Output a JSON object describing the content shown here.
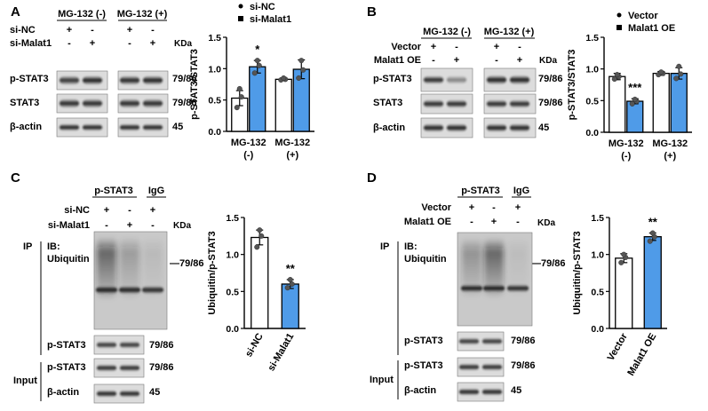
{
  "panels": {
    "A": {
      "letter": "A",
      "groups": [
        "MG-132 (-)",
        "MG-132 (+)"
      ],
      "rows": [
        {
          "label": "si-NC",
          "signs": [
            "+",
            "-",
            "+",
            "-"
          ]
        },
        {
          "label": "si-Malat1",
          "signs": [
            "-",
            "+",
            "-",
            "+"
          ]
        }
      ],
      "kda": "KDa",
      "blots": [
        {
          "label": "p-STAT3",
          "kda": "79/86"
        },
        {
          "label": "STAT3",
          "kda": "79/86"
        },
        {
          "label": "β-actin",
          "kda": "45"
        }
      ]
    },
    "B": {
      "letter": "B",
      "groups": [
        "MG-132 (-)",
        "MG-132 (+)"
      ],
      "rows": [
        {
          "label": "Vector",
          "signs": [
            "+",
            "-",
            "+",
            "-"
          ]
        },
        {
          "label": "Malat1 OE",
          "signs": [
            "-",
            "+",
            "-",
            "+"
          ]
        }
      ],
      "kda": "KDa",
      "blots": [
        {
          "label": "p-STAT3",
          "kda": "79/86"
        },
        {
          "label": "STAT3",
          "kda": "79/86"
        },
        {
          "label": "β-actin",
          "kda": "45"
        }
      ]
    },
    "C": {
      "letter": "C",
      "col_headers": [
        "p-STAT3",
        "IgG"
      ],
      "rows": [
        {
          "label": "si-NC",
          "signs": [
            "+",
            "-",
            "+"
          ]
        },
        {
          "label": "si-Malat1",
          "signs": [
            "-",
            "+",
            "-"
          ]
        }
      ],
      "kda": "KDa",
      "ip": "IP",
      "ib": "IB:",
      "ib_target": "Ubiquitin",
      "ub_kda": "—79/86",
      "ip_blot": {
        "label": "p-STAT3",
        "kda": "79/86"
      },
      "input": "Input",
      "input_blots": [
        {
          "label": "p-STAT3",
          "kda": "79/86"
        },
        {
          "label": "β-actin",
          "kda": "45"
        }
      ]
    },
    "D": {
      "letter": "D",
      "col_headers": [
        "p-STAT3",
        "IgG"
      ],
      "rows": [
        {
          "label": "Vector",
          "signs": [
            "+",
            "-",
            "+"
          ]
        },
        {
          "label": "Malat1 OE",
          "signs": [
            "-",
            "+",
            "-"
          ]
        }
      ],
      "kda": "KDa",
      "ip": "IP",
      "ib": "IB:",
      "ib_target": "Ubiquitin",
      "ub_kda": "—79/86",
      "ip_blot": {
        "label": "p-STAT3",
        "kda": "79/86"
      },
      "input": "Input",
      "input_blots": [
        {
          "label": "p-STAT3",
          "kda": "79/86"
        },
        {
          "label": "β-actin",
          "kda": "45"
        }
      ]
    }
  },
  "colors": {
    "control": "#ffffff",
    "treated": "#4f9be8",
    "outline": "#000000"
  },
  "chart_data": [
    {
      "panel": "A",
      "type": "bar",
      "ylabel": "p-STAT3/STAT3",
      "ylim": [
        0,
        1.5
      ],
      "yticks": [
        "0.0",
        "0.5",
        "1.0",
        "1.5"
      ],
      "categories": [
        [
          "MG-132",
          "(-)"
        ],
        [
          "MG-132",
          "(+)"
        ]
      ],
      "series": [
        {
          "name": "si-NC",
          "color": "#ffffff",
          "values": [
            0.53,
            0.83
          ],
          "errors": [
            0.12,
            0.02
          ],
          "points": [
            [
              0.38,
              0.55,
              0.68
            ],
            [
              0.82,
              0.83,
              0.85
            ]
          ]
        },
        {
          "name": "si-Malat1",
          "color": "#4f9be8",
          "values": [
            1.03,
            0.99
          ],
          "errors": [
            0.1,
            0.15
          ],
          "points": [
            [
              0.93,
              1.05,
              1.13
            ],
            [
              0.85,
              0.98,
              1.13
            ]
          ]
        }
      ],
      "annotations": [
        {
          "category": 0,
          "series": 1,
          "text": "*"
        }
      ]
    },
    {
      "panel": "B",
      "type": "bar",
      "ylabel": "p-STAT3/STAT3",
      "ylim": [
        0,
        1.5
      ],
      "yticks": [
        "0.0",
        "0.5",
        "1.0",
        "1.5"
      ],
      "categories": [
        [
          "MG-132",
          "(-)"
        ],
        [
          "MG-132",
          "(+)"
        ]
      ],
      "series": [
        {
          "name": "Vector",
          "color": "#ffffff",
          "values": [
            0.88,
            0.93
          ],
          "errors": [
            0.05,
            0.03
          ],
          "points": [
            [
              0.84,
              0.88,
              0.91
            ],
            [
              0.91,
              0.93,
              0.95
            ]
          ]
        },
        {
          "name": "Malat1 OE",
          "color": "#4f9be8",
          "values": [
            0.49,
            0.93
          ],
          "errors": [
            0.04,
            0.09
          ],
          "points": [
            [
              0.45,
              0.49,
              0.52
            ],
            [
              0.85,
              0.92,
              1.04
            ]
          ]
        }
      ],
      "annotations": [
        {
          "category": 0,
          "series": 1,
          "text": "***"
        }
      ]
    },
    {
      "panel": "C",
      "type": "bar",
      "ylabel": "Ubiquitin/p-STAT3",
      "ylim": [
        0,
        1.5
      ],
      "yticks": [
        "0.0",
        "0.5",
        "1.0",
        "1.5"
      ],
      "categories": [
        "si-NC",
        "si-Malat1"
      ],
      "values": [
        1.23,
        0.6
      ],
      "errors": [
        0.1,
        0.06
      ],
      "colors": [
        "#ffffff",
        "#4f9be8"
      ],
      "points": [
        [
          1.1,
          1.25,
          1.33
        ],
        [
          0.55,
          0.6,
          0.66
        ]
      ],
      "annotations": [
        {
          "index": 1,
          "text": "**"
        }
      ]
    },
    {
      "panel": "D",
      "type": "bar",
      "ylabel": "Ubiquitin/p-STAT3",
      "ylim": [
        0,
        1.5
      ],
      "yticks": [
        "0.0",
        "0.5",
        "1.0",
        "1.5"
      ],
      "categories": [
        "Vector",
        "Malat1 OE"
      ],
      "values": [
        0.95,
        1.24
      ],
      "errors": [
        0.06,
        0.05
      ],
      "colors": [
        "#ffffff",
        "#4f9be8"
      ],
      "points": [
        [
          0.89,
          0.96,
          1.0
        ],
        [
          1.18,
          1.24,
          1.29
        ]
      ],
      "annotations": [
        {
          "index": 1,
          "text": "**"
        }
      ]
    }
  ]
}
